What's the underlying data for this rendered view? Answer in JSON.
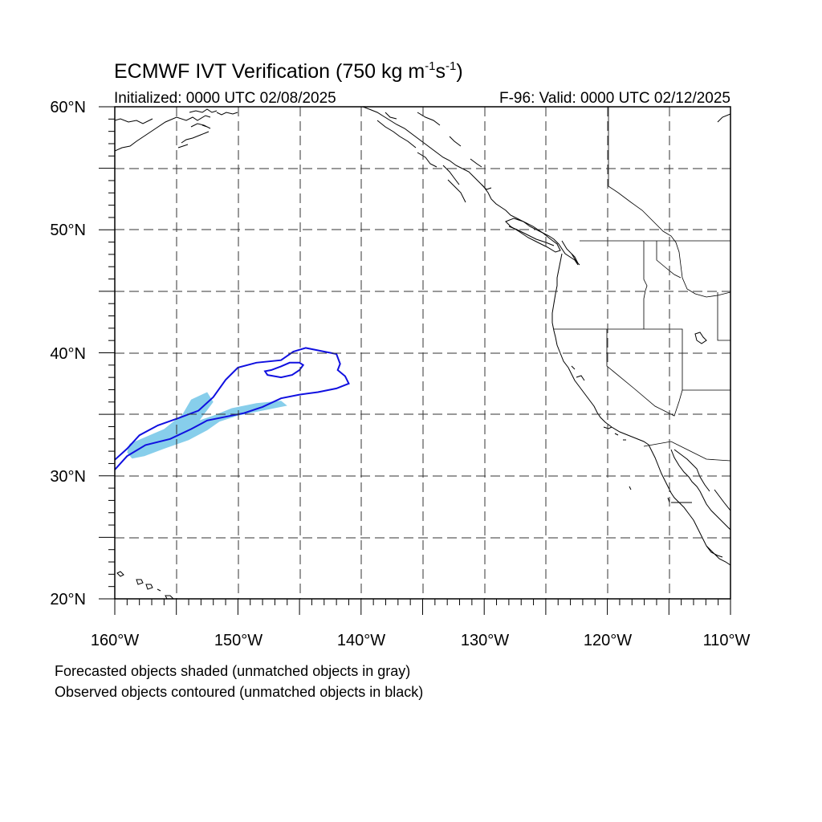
{
  "figure": {
    "title": "ECMWF IVT Verification (750 kg m",
    "title_unit_exp1": "-1",
    "title_unit_s": "s",
    "title_unit_exp2": "-1",
    "title_close": ")",
    "initialized": "Initialized: 0000 UTC 02/08/2025",
    "valid": "F-96: Valid: 0000 UTC 02/12/2025",
    "footnote_line1": "Forecasted objects shaded (unmatched objects in gray)",
    "footnote_line2": "Observed objects contoured (unmatched objects in black)"
  },
  "map": {
    "lon_range": [
      -160,
      -110
    ],
    "lat_range": [
      20,
      60
    ],
    "lon_tick_labels": [
      "160°W",
      "150°W",
      "140°W",
      "130°W",
      "120°W",
      "110°W"
    ],
    "lat_tick_labels": [
      "20°N",
      "30°N",
      "40°N",
      "50°N",
      "60°N"
    ],
    "gridlines": "dashed every 5 degrees",
    "colors": {
      "forecast_shaded": "#87CEEB",
      "observed_contour": "#1010e0",
      "coastline": "#000000"
    },
    "forecast_object": [
      [
        -158.2,
        31.7
      ],
      [
        -156.0,
        33.0
      ],
      [
        -154.0,
        34.2
      ],
      [
        -152.0,
        34.9
      ],
      [
        -150.5,
        35.5
      ],
      [
        -148.5,
        35.9
      ],
      [
        -146.5,
        36.1
      ],
      [
        -146.0,
        35.7
      ],
      [
        -148.0,
        35.3
      ],
      [
        -150.0,
        34.9
      ],
      [
        -151.5,
        34.4
      ],
      [
        -152.5,
        33.7
      ],
      [
        -154.0,
        32.9
      ],
      [
        -156.0,
        32.2
      ],
      [
        -157.6,
        31.6
      ],
      [
        -158.6,
        31.4
      ],
      [
        -159.0,
        31.9
      ],
      [
        -158.8,
        32.6
      ],
      [
        -156.0,
        33.8
      ],
      [
        -154.5,
        35.0
      ],
      [
        -153.8,
        36.2
      ],
      [
        -152.5,
        36.8
      ],
      [
        -152.0,
        36.0
      ],
      [
        -153.5,
        34.0
      ],
      [
        -156.0,
        32.8
      ],
      [
        -158.2,
        31.7
      ]
    ],
    "observed_object_outer": [
      [
        -160.0,
        31.3
      ],
      [
        -159.0,
        32.2
      ],
      [
        -158.0,
        33.3
      ],
      [
        -156.5,
        34.1
      ],
      [
        -154.8,
        34.7
      ],
      [
        -153.2,
        35.3
      ],
      [
        -152.0,
        36.4
      ],
      [
        -151.0,
        37.8
      ],
      [
        -150.0,
        38.8
      ],
      [
        -148.5,
        39.2
      ],
      [
        -146.5,
        39.4
      ],
      [
        -145.5,
        40.1
      ],
      [
        -144.5,
        40.4
      ],
      [
        -143.0,
        40.1
      ],
      [
        -142.0,
        39.9
      ],
      [
        -141.7,
        39.1
      ],
      [
        -141.9,
        38.6
      ],
      [
        -141.3,
        38.1
      ],
      [
        -141.0,
        37.5
      ],
      [
        -142.0,
        37.1
      ],
      [
        -143.5,
        36.8
      ],
      [
        -145.0,
        36.6
      ],
      [
        -146.5,
        36.3
      ],
      [
        -148.0,
        35.6
      ],
      [
        -149.5,
        35.1
      ],
      [
        -151.0,
        34.8
      ],
      [
        -152.5,
        34.5
      ],
      [
        -153.8,
        33.8
      ],
      [
        -155.5,
        33.0
      ],
      [
        -157.5,
        32.5
      ],
      [
        -159.0,
        31.6
      ],
      [
        -160.0,
        30.5
      ]
    ],
    "observed_object_inner": [
      [
        -147.6,
        38.2
      ],
      [
        -146.5,
        38.0
      ],
      [
        -145.6,
        38.2
      ],
      [
        -145.0,
        38.6
      ],
      [
        -144.7,
        39.0
      ],
      [
        -145.0,
        39.2
      ],
      [
        -145.8,
        39.2
      ],
      [
        -146.5,
        38.9
      ],
      [
        -147.3,
        38.6
      ],
      [
        -147.8,
        38.5
      ],
      [
        -147.6,
        38.2
      ]
    ]
  }
}
